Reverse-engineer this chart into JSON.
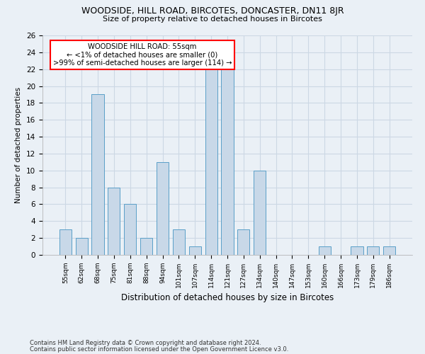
{
  "title1": "WOODSIDE, HILL ROAD, BIRCOTES, DONCASTER, DN11 8JR",
  "title2": "Size of property relative to detached houses in Bircotes",
  "xlabel": "Distribution of detached houses by size in Bircotes",
  "ylabel": "Number of detached properties",
  "categories": [
    "55sqm",
    "62sqm",
    "68sqm",
    "75sqm",
    "81sqm",
    "88sqm",
    "94sqm",
    "101sqm",
    "107sqm",
    "114sqm",
    "121sqm",
    "127sqm",
    "134sqm",
    "140sqm",
    "147sqm",
    "153sqm",
    "160sqm",
    "166sqm",
    "173sqm",
    "179sqm",
    "186sqm"
  ],
  "values": [
    3,
    2,
    19,
    8,
    6,
    2,
    11,
    3,
    1,
    22,
    22,
    3,
    10,
    0,
    0,
    0,
    1,
    0,
    1,
    1,
    1
  ],
  "bar_color": "#c8d8e8",
  "bar_edge_color": "#5a9fc8",
  "highlight_index": 0,
  "annotation_box_text": "WOODSIDE HILL ROAD: 55sqm\n← <1% of detached houses are smaller (0)\n>99% of semi-detached houses are larger (114) →",
  "annotation_box_color": "white",
  "annotation_box_edge_color": "red",
  "ylim": [
    0,
    26
  ],
  "yticks": [
    0,
    2,
    4,
    6,
    8,
    10,
    12,
    14,
    16,
    18,
    20,
    22,
    24,
    26
  ],
  "grid_color": "#ccd8e4",
  "footnote1": "Contains HM Land Registry data © Crown copyright and database right 2024.",
  "footnote2": "Contains public sector information licensed under the Open Government Licence v3.0.",
  "bg_color": "#eaf0f6"
}
